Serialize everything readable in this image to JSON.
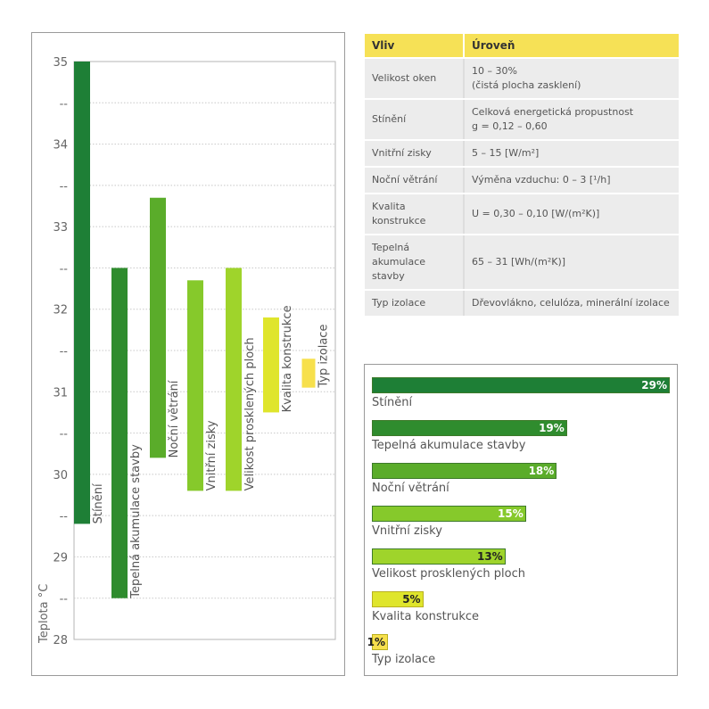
{
  "chart_data": [
    {
      "type": "bar",
      "subtype": "floating-range",
      "ylabel": "Teplota °C",
      "ylim": [
        28,
        35
      ],
      "yticks": [
        "35",
        "--",
        "34",
        "--",
        "33",
        "--",
        "32",
        "--",
        "31",
        "--",
        "30",
        "--",
        "29",
        "--",
        "28"
      ],
      "grid": true,
      "categories": [
        "Stínění",
        "Tepelná akumulace stavby",
        "Noční větrání",
        "Vnitřní zisky",
        "Velikost prosklených ploch",
        "Kvalita konstrukce",
        "Typ izolace"
      ],
      "ranges": [
        [
          29.4,
          35.0
        ],
        [
          28.5,
          32.5
        ],
        [
          30.2,
          33.35
        ],
        [
          29.8,
          32.35
        ],
        [
          29.8,
          32.5
        ],
        [
          30.75,
          31.9
        ],
        [
          31.05,
          31.4
        ]
      ],
      "colors": [
        "#1e7f36",
        "#2f8c2e",
        "#5aac2a",
        "#86c92b",
        "#9fd42b",
        "#dfe52c",
        "#f7e04c"
      ]
    },
    {
      "type": "bar",
      "orientation": "horizontal",
      "categories": [
        "Stínění",
        "Tepelná akumulace stavby",
        "Noční větrání",
        "Vnitřní zisky",
        "Velikost prosklených ploch",
        "Kvalita konstrukce",
        "Typ izolace"
      ],
      "values": [
        29,
        19,
        18,
        15,
        13,
        5,
        1
      ],
      "value_labels": [
        "29%",
        "19%",
        "18%",
        "15%",
        "13%",
        "5%",
        "1%"
      ],
      "colors": [
        "#1e7f36",
        "#2f8c2e",
        "#5aac2a",
        "#86c92b",
        "#9fd42b",
        "#dfe52c",
        "#f7e04c"
      ]
    }
  ],
  "table": {
    "headers": [
      "Vliv",
      "Úroveň"
    ],
    "rows": [
      {
        "vliv": "Velikost oken",
        "uroven": [
          "10 – 30%",
          "(čistá plocha zasklení)"
        ]
      },
      {
        "vliv": "Stínění",
        "uroven": [
          "Celková energetická propustnost",
          "g = 0,12 – 0,60"
        ]
      },
      {
        "vliv": "Vnitřní zisky",
        "uroven": [
          "5 – 15 [W/m²]"
        ]
      },
      {
        "vliv": "Noční větrání",
        "uroven": [
          "Výměna vzduchu: 0 – 3 [¹/h]"
        ]
      },
      {
        "vliv": "Kvalita konstrukce",
        "uroven": [
          "U = 0,30 – 0,10 [W/(m²K)]"
        ]
      },
      {
        "vliv": "Tepelná akumulace stavby",
        "uroven": [
          "65 – 31 [Wh/(m²K)]"
        ]
      },
      {
        "vliv": "Typ izolace",
        "uroven": [
          "Dřevovlákno, celulóza, minerální izolace"
        ]
      }
    ]
  }
}
